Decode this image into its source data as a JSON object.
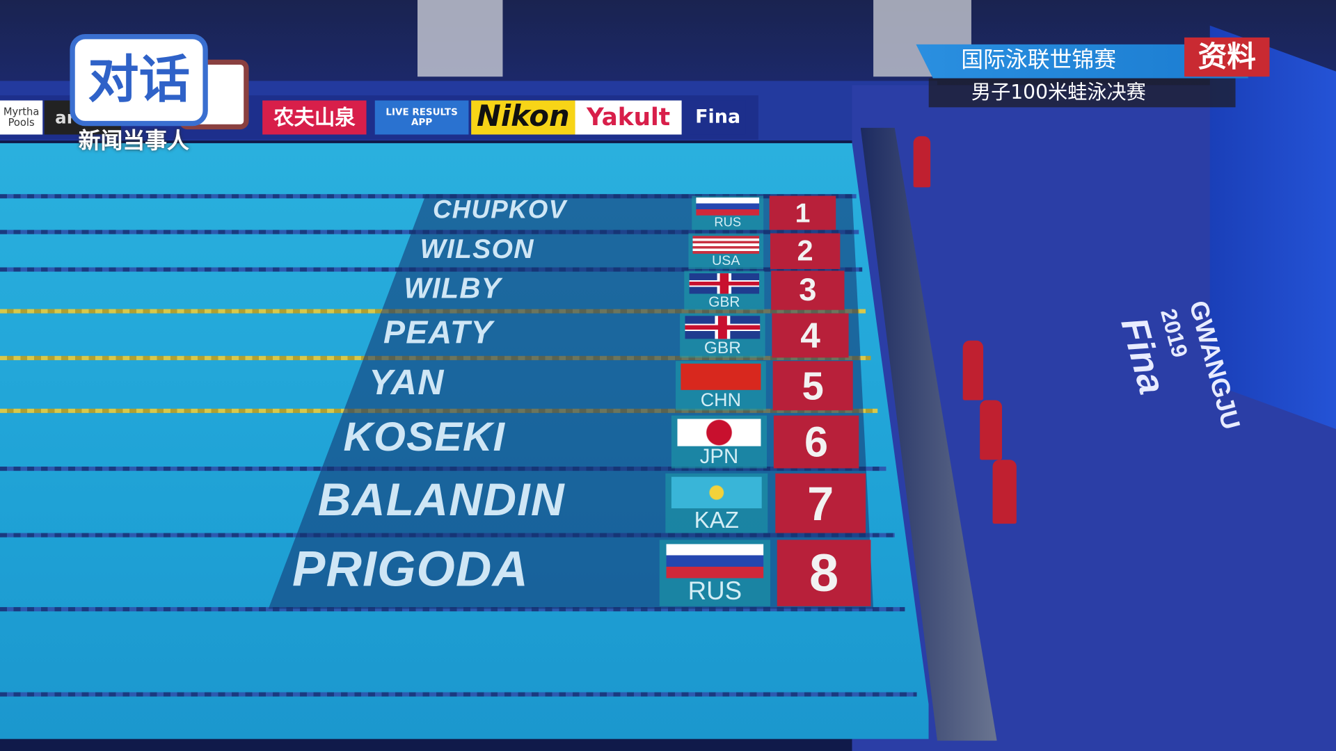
{
  "broadcast": {
    "title": "国际泳联世锦赛",
    "subtitle": "男子100米蛙泳决赛",
    "tag": "资料"
  },
  "watermark": {
    "logo_text": "对话",
    "sub_text": "新闻当事人"
  },
  "ads": [
    "Myrtha Pools",
    "arena",
    "农夫山泉",
    "LIVE RESULTS APP",
    "Nikon",
    "Yakult",
    "Fina"
  ],
  "deck_branding": {
    "city": "GWANGJU",
    "year": "2019",
    "brand": "Fina"
  },
  "lanes": [
    {
      "lane": "1",
      "name": "CHUPKOV",
      "country": "RUS",
      "flag": "russia"
    },
    {
      "lane": "2",
      "name": "WILSON",
      "country": "USA",
      "flag": "usa"
    },
    {
      "lane": "3",
      "name": "WILBY",
      "country": "GBR",
      "flag": "uk"
    },
    {
      "lane": "4",
      "name": "PEATY",
      "country": "GBR",
      "flag": "uk"
    },
    {
      "lane": "5",
      "name": "YAN",
      "country": "CHN",
      "flag": "china"
    },
    {
      "lane": "6",
      "name": "KOSEKI",
      "country": "JPN",
      "flag": "japan"
    },
    {
      "lane": "7",
      "name": "BALANDIN",
      "country": "KAZ",
      "flag": "kazakhstan"
    },
    {
      "lane": "8",
      "name": "PRIGODA",
      "country": "RUS",
      "flag": "russia"
    }
  ],
  "colors": {
    "pool": "#1fa2d6",
    "deck": "#2b3ea6",
    "lane_number_bg": "#b8203a",
    "banner": "#2a8fe0"
  }
}
